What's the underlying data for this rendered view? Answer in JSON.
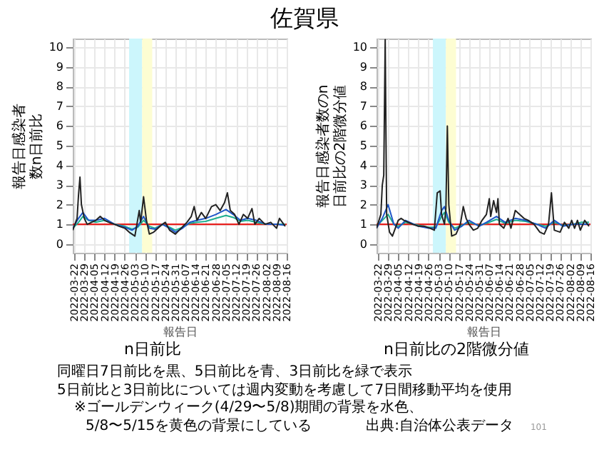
{
  "chart_data": [
    {
      "type": "line",
      "title": "佐賀県",
      "subtitle": "n日前比",
      "xlabel": "報告日",
      "ylabel": "報告日感染者数n日前比",
      "xlim": [
        "2022-03-21",
        "2022-08-16"
      ],
      "ylim": [
        -0.45,
        10.45
      ],
      "xticks": [
        "2022-03-22",
        "2022-03-29",
        "2022-04-05",
        "2022-04-12",
        "2022-04-19",
        "2022-04-26",
        "2022-05-03",
        "2022-05-10",
        "2022-05-17",
        "2022-05-24",
        "2022-05-31",
        "2022-06-07",
        "2022-06-14",
        "2022-06-21",
        "2022-06-28",
        "2022-07-05",
        "2022-07-12",
        "2022-07-19",
        "2022-07-26",
        "2022-08-02",
        "2022-08-09",
        "2022-08-16"
      ],
      "yticks": [
        0,
        1,
        2,
        3,
        4,
        5,
        6,
        7,
        8,
        9,
        10
      ],
      "grid": true,
      "bands": [
        {
          "axis": "x",
          "from": "2022-04-29",
          "to": "2022-05-08",
          "color": "#ccf6fc"
        },
        {
          "axis": "x",
          "from": "2022-05-08",
          "to": "2022-05-15",
          "color": "#fdfdd2"
        }
      ],
      "ref_lines": [
        {
          "axis": "y",
          "value": 1,
          "color": "#e8201e"
        }
      ],
      "series": [
        {
          "color": "#1fae8f",
          "x": [
            "2022-03-21",
            "2022-03-25",
            "2022-03-28",
            "2022-04-01",
            "2022-04-06",
            "2022-04-12",
            "2022-04-19",
            "2022-04-26",
            "2022-05-01",
            "2022-05-05",
            "2022-05-09",
            "2022-05-13",
            "2022-05-17",
            "2022-05-22",
            "2022-05-27",
            "2022-05-31",
            "2022-06-05",
            "2022-06-10",
            "2022-06-15",
            "2022-06-21",
            "2022-06-28",
            "2022-07-05",
            "2022-07-10",
            "2022-07-15",
            "2022-07-20",
            "2022-07-26",
            "2022-08-02",
            "2022-08-09",
            "2022-08-15"
          ],
          "values": [
            0.8,
            1.1,
            1.4,
            1.2,
            1.1,
            1.2,
            1.0,
            0.9,
            0.75,
            0.85,
            1.2,
            0.9,
            0.8,
            1.0,
            0.85,
            0.7,
            0.85,
            1.05,
            1.1,
            1.15,
            1.3,
            1.45,
            1.35,
            1.15,
            1.2,
            1.1,
            1.0,
            1.0,
            1.0
          ]
        },
        {
          "color": "#1e56c8",
          "x": [
            "2022-03-21",
            "2022-03-25",
            "2022-03-28",
            "2022-04-01",
            "2022-04-06",
            "2022-04-12",
            "2022-04-19",
            "2022-04-26",
            "2022-05-01",
            "2022-05-05",
            "2022-05-09",
            "2022-05-13",
            "2022-05-17",
            "2022-05-22",
            "2022-05-27",
            "2022-05-31",
            "2022-06-05",
            "2022-06-10",
            "2022-06-15",
            "2022-06-21",
            "2022-06-28",
            "2022-07-05",
            "2022-07-10",
            "2022-07-15",
            "2022-07-20",
            "2022-07-26",
            "2022-08-02",
            "2022-08-09",
            "2022-08-15"
          ],
          "values": [
            0.8,
            1.3,
            1.6,
            1.2,
            1.2,
            1.3,
            1.0,
            0.85,
            0.7,
            0.9,
            1.4,
            0.8,
            0.75,
            1.0,
            0.8,
            0.6,
            0.8,
            1.1,
            1.2,
            1.3,
            1.5,
            1.75,
            1.5,
            1.2,
            1.3,
            1.2,
            1.0,
            1.0,
            0.95
          ]
        },
        {
          "color": "#222222",
          "x": [
            "2022-03-21",
            "2022-03-24",
            "2022-03-25",
            "2022-03-26",
            "2022-03-27",
            "2022-03-29",
            "2022-03-31",
            "2022-04-03",
            "2022-04-06",
            "2022-04-09",
            "2022-04-12",
            "2022-04-15",
            "2022-04-19",
            "2022-04-22",
            "2022-04-26",
            "2022-04-29",
            "2022-05-01",
            "2022-05-03",
            "2022-05-06",
            "2022-05-07",
            "2022-05-09",
            "2022-05-11",
            "2022-05-13",
            "2022-05-16",
            "2022-05-19",
            "2022-05-22",
            "2022-05-24",
            "2022-05-27",
            "2022-05-31",
            "2022-06-04",
            "2022-06-08",
            "2022-06-11",
            "2022-06-13",
            "2022-06-15",
            "2022-06-18",
            "2022-06-21",
            "2022-06-25",
            "2022-06-28",
            "2022-07-01",
            "2022-07-04",
            "2022-07-06",
            "2022-07-08",
            "2022-07-11",
            "2022-07-14",
            "2022-07-17",
            "2022-07-20",
            "2022-07-23",
            "2022-07-25",
            "2022-07-28",
            "2022-08-01",
            "2022-08-05",
            "2022-08-09",
            "2022-08-11",
            "2022-08-15"
          ],
          "values": [
            0.7,
            1.3,
            2.5,
            3.4,
            2.0,
            1.3,
            1.0,
            1.1,
            1.2,
            1.4,
            1.2,
            1.1,
            1.0,
            0.9,
            0.8,
            0.6,
            0.5,
            0.4,
            1.7,
            1.1,
            2.4,
            1.2,
            0.5,
            0.6,
            0.8,
            1.0,
            1.1,
            0.7,
            0.5,
            0.8,
            1.1,
            1.4,
            1.9,
            1.2,
            1.6,
            1.3,
            1.9,
            2.0,
            1.7,
            2.1,
            2.6,
            1.7,
            1.5,
            1.0,
            1.5,
            1.3,
            1.8,
            1.0,
            1.3,
            1.0,
            1.1,
            0.8,
            1.3,
            0.9
          ]
        }
      ],
      "annotations": [
        "同曜日7日前比を黒、5日前比を青、3日前比を緑で表示",
        "5日前比と3日前比については週内変動を考慮して7日間移動平均を使用",
        "※ゴールデンウィーク(4/29〜5/8)期間の背景を水色、",
        "5/8〜5/15を黄色の背景にしている",
        "出典:自治体公表データ",
        "101"
      ]
    },
    {
      "type": "line",
      "subtitle": "n日前比の2階微分値",
      "xlabel": "報告日",
      "ylabel": "報告日感染者数のn日前比の2階微分値",
      "xlim": [
        "2022-03-21",
        "2022-08-16"
      ],
      "ylim": [
        -0.45,
        10.45
      ],
      "xticks": [
        "2022-03-22",
        "2022-03-29",
        "2022-04-05",
        "2022-04-12",
        "2022-04-19",
        "2022-04-26",
        "2022-05-03",
        "2022-05-10",
        "2022-05-17",
        "2022-05-24",
        "2022-05-31",
        "2022-06-07",
        "2022-06-14",
        "2022-06-21",
        "2022-06-28",
        "2022-07-05",
        "2022-07-12",
        "2022-07-19",
        "2022-07-26",
        "2022-08-02",
        "2022-08-09",
        "2022-08-16"
      ],
      "yticks": [
        0,
        1,
        2,
        3,
        4,
        5,
        6,
        7,
        8,
        9,
        10
      ],
      "grid": true,
      "bands": [
        {
          "axis": "x",
          "from": "2022-04-29",
          "to": "2022-05-08",
          "color": "#ccf6fc"
        },
        {
          "axis": "x",
          "from": "2022-05-08",
          "to": "2022-05-15",
          "color": "#fdfdd2"
        }
      ],
      "ref_lines": [
        {
          "axis": "y",
          "value": 1,
          "color": "#e8201e"
        }
      ],
      "series": [
        {
          "color": "#1fae8f",
          "x": [
            "2022-03-21",
            "2022-03-25",
            "2022-03-29",
            "2022-04-02",
            "2022-04-05",
            "2022-04-10",
            "2022-04-19",
            "2022-04-26",
            "2022-05-01",
            "2022-05-05",
            "2022-05-07",
            "2022-05-10",
            "2022-05-14",
            "2022-05-19",
            "2022-05-24",
            "2022-05-31",
            "2022-06-05",
            "2022-06-12",
            "2022-06-18",
            "2022-06-25",
            "2022-07-02",
            "2022-07-10",
            "2022-07-16",
            "2022-07-22",
            "2022-07-28",
            "2022-08-04",
            "2022-08-10",
            "2022-08-15"
          ],
          "values": [
            0.9,
            1.2,
            1.5,
            1.0,
            0.9,
            1.1,
            0.95,
            0.85,
            0.85,
            1.4,
            1.6,
            1.1,
            0.8,
            0.95,
            1.1,
            0.95,
            1.05,
            1.25,
            1.05,
            1.2,
            1.15,
            1.0,
            0.9,
            1.1,
            0.95,
            1.0,
            1.1,
            1.1
          ]
        },
        {
          "color": "#1e56c8",
          "x": [
            "2022-03-21",
            "2022-03-25",
            "2022-03-29",
            "2022-04-02",
            "2022-04-05",
            "2022-04-10",
            "2022-04-19",
            "2022-04-26",
            "2022-05-01",
            "2022-05-05",
            "2022-05-07",
            "2022-05-10",
            "2022-05-14",
            "2022-05-19",
            "2022-05-24",
            "2022-05-31",
            "2022-06-05",
            "2022-06-12",
            "2022-06-18",
            "2022-06-25",
            "2022-07-02",
            "2022-07-10",
            "2022-07-16",
            "2022-07-22",
            "2022-07-28",
            "2022-08-04",
            "2022-08-10",
            "2022-08-15"
          ],
          "values": [
            0.8,
            1.3,
            2.0,
            1.0,
            0.8,
            1.2,
            0.9,
            0.8,
            0.8,
            1.7,
            1.9,
            1.2,
            0.7,
            0.9,
            1.2,
            0.9,
            1.1,
            1.4,
            1.1,
            1.3,
            1.2,
            1.0,
            0.8,
            1.2,
            0.9,
            1.0,
            1.0,
            1.0
          ]
        },
        {
          "color": "#222222",
          "x": [
            "2022-03-21",
            "2022-03-24",
            "2022-03-25",
            "2022-03-26",
            "2022-03-27",
            "2022-03-28",
            "2022-03-30",
            "2022-04-01",
            "2022-04-03",
            "2022-04-05",
            "2022-04-07",
            "2022-04-09",
            "2022-04-12",
            "2022-04-15",
            "2022-04-19",
            "2022-04-23",
            "2022-04-27",
            "2022-04-30",
            "2022-05-02",
            "2022-05-04",
            "2022-05-05",
            "2022-05-07",
            "2022-05-08",
            "2022-05-09",
            "2022-05-10",
            "2022-05-12",
            "2022-05-15",
            "2022-05-18",
            "2022-05-20",
            "2022-05-22",
            "2022-05-24",
            "2022-05-27",
            "2022-05-30",
            "2022-06-02",
            "2022-06-05",
            "2022-06-07",
            "2022-06-08",
            "2022-06-10",
            "2022-06-12",
            "2022-06-13",
            "2022-06-14",
            "2022-06-17",
            "2022-06-20",
            "2022-06-22",
            "2022-06-25",
            "2022-06-28",
            "2022-07-01",
            "2022-07-04",
            "2022-07-08",
            "2022-07-12",
            "2022-07-15",
            "2022-07-18",
            "2022-07-20",
            "2022-07-22",
            "2022-07-26",
            "2022-07-29",
            "2022-08-01",
            "2022-08-03",
            "2022-08-05",
            "2022-08-07",
            "2022-08-09",
            "2022-08-12",
            "2022-08-15"
          ],
          "values": [
            0.8,
            1.5,
            3.0,
            3.5,
            10.4,
            1.5,
            0.6,
            0.4,
            0.8,
            1.2,
            1.3,
            1.2,
            1.1,
            1.0,
            0.9,
            0.9,
            0.8,
            0.7,
            2.6,
            2.7,
            1.5,
            1.0,
            1.8,
            6.0,
            2.0,
            0.4,
            0.5,
            1.0,
            1.9,
            1.3,
            1.0,
            0.7,
            0.8,
            1.2,
            1.5,
            2.3,
            1.4,
            2.2,
            1.6,
            2.3,
            1.0,
            0.8,
            1.3,
            0.8,
            1.7,
            1.5,
            1.3,
            1.2,
            1.0,
            0.6,
            0.5,
            1.0,
            2.6,
            0.7,
            0.6,
            1.1,
            0.8,
            1.2,
            0.8,
            1.2,
            0.7,
            1.2,
            0.9
          ]
        }
      ]
    }
  ]
}
